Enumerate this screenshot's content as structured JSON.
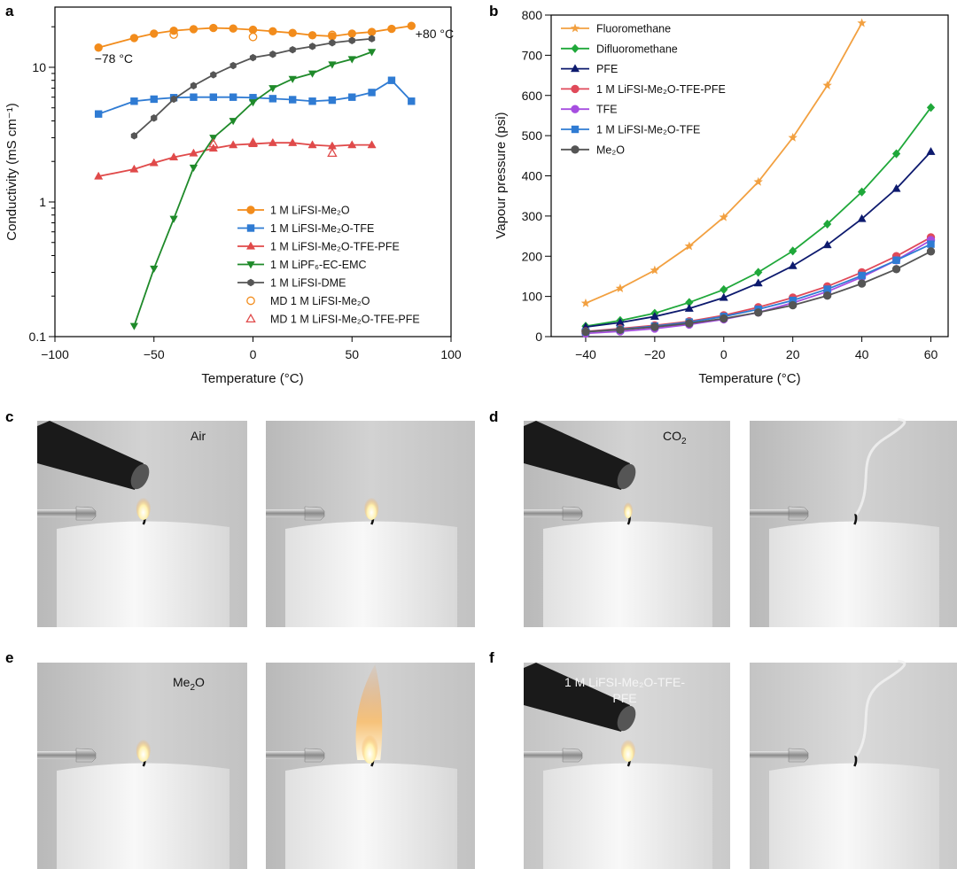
{
  "panels": {
    "a": "a",
    "b": "b",
    "c": "c",
    "d": "d",
    "e": "e",
    "f": "f"
  },
  "chart_data": [
    {
      "id": "a",
      "type": "line",
      "xlabel": "Temperature (°C)",
      "ylabel": "Conductivity (mS cm⁻¹)",
      "xlim": [
        -100,
        100
      ],
      "ylim": [
        0.1,
        28
      ],
      "yscale": "log",
      "xticks": [
        -100,
        -50,
        0,
        50,
        100
      ],
      "yticks": [
        0.1,
        1,
        10
      ],
      "yticklabels": [
        "0.1",
        "1",
        "10"
      ],
      "grid": false,
      "legend_position": "lower-right",
      "annotations": [
        {
          "text": "−78 °C",
          "x": -80,
          "y": 10.8
        },
        {
          "text": "+80 °C",
          "x": 82,
          "y": 16.5
        }
      ],
      "series": [
        {
          "name": "1 M LiFSI-Me₂O",
          "color": "#f28c1c",
          "marker": "circle",
          "x": [
            -78,
            -60,
            -50,
            -40,
            -30,
            -20,
            -10,
            0,
            10,
            20,
            30,
            40,
            50,
            60,
            70,
            80
          ],
          "y": [
            14,
            16.5,
            17.8,
            18.7,
            19.2,
            19.6,
            19.4,
            19,
            18.5,
            18,
            17.3,
            17,
            17.8,
            18.3,
            19.3,
            20.3
          ]
        },
        {
          "name": "1 M LiFSI-Me₂O-TFE",
          "color": "#2f7bd3",
          "marker": "square",
          "x": [
            -78,
            -60,
            -50,
            -40,
            -30,
            -20,
            -10,
            0,
            10,
            20,
            30,
            40,
            50,
            60,
            70,
            80
          ],
          "y": [
            4.5,
            5.6,
            5.8,
            5.95,
            6.0,
            6.0,
            6.0,
            5.95,
            5.85,
            5.75,
            5.6,
            5.7,
            6.0,
            6.5,
            8,
            5.6
          ]
        },
        {
          "name": "1 M LiFSI-Me₂O-TFE-PFE",
          "color": "#e04a4a",
          "marker": "triangle-up",
          "x": [
            -78,
            -60,
            -50,
            -40,
            -30,
            -20,
            -10,
            0,
            10,
            20,
            30,
            40,
            50,
            60
          ],
          "y": [
            1.55,
            1.75,
            1.95,
            2.15,
            2.3,
            2.5,
            2.65,
            2.7,
            2.75,
            2.75,
            2.65,
            2.6,
            2.65,
            2.65
          ]
        },
        {
          "name": "1 M LiPF₆-EC-EMC",
          "color": "#1f8a2a",
          "marker": "triangle-down",
          "x": [
            -60,
            -50,
            -40,
            -30,
            -20,
            -10,
            0,
            10,
            20,
            30,
            40,
            50,
            60
          ],
          "y": [
            0.12,
            0.32,
            0.75,
            1.8,
            3.0,
            4.0,
            5.5,
            7.0,
            8.2,
            9.0,
            10.5,
            11.5,
            13
          ]
        },
        {
          "name": "1 M LiFSI-DME",
          "color": "#555555",
          "marker": "hexagon",
          "x": [
            -60,
            -50,
            -40,
            -30,
            -20,
            -10,
            0,
            10,
            20,
            30,
            40,
            50,
            60
          ],
          "y": [
            3.1,
            4.2,
            5.8,
            7.3,
            8.8,
            10.3,
            11.8,
            12.5,
            13.5,
            14.3,
            15.2,
            15.8,
            16.3
          ]
        },
        {
          "name": "MD 1 M LiFSI-Me₂O",
          "color": "#f28c1c",
          "marker": "open-circle",
          "line": false,
          "x": [
            -40,
            0,
            40
          ],
          "y": [
            17.5,
            16.8,
            17.4
          ]
        },
        {
          "name": "MD 1 M LiFSI-Me₂O-TFE-PFE",
          "color": "#e04a4a",
          "marker": "open-triangle",
          "line": false,
          "x": [
            -20,
            0,
            40
          ],
          "y": [
            2.7,
            2.75,
            2.3
          ]
        }
      ]
    },
    {
      "id": "b",
      "type": "line",
      "xlabel": "Temperature (°C)",
      "ylabel": "Vapour pressure (psi)",
      "xlim": [
        -50,
        65
      ],
      "ylim": [
        0,
        800
      ],
      "xticks": [
        -40,
        -20,
        0,
        20,
        40,
        60
      ],
      "yticks": [
        0,
        100,
        200,
        300,
        400,
        500,
        600,
        700,
        800
      ],
      "grid": false,
      "legend_position": "top-left",
      "series": [
        {
          "name": "Fluoromethane",
          "color": "#f2a040",
          "marker": "star",
          "x": [
            -40,
            -30,
            -20,
            -10,
            0,
            10,
            20,
            30,
            40
          ],
          "y": [
            83,
            120,
            165,
            225,
            297,
            385,
            495,
            625,
            780
          ]
        },
        {
          "name": "Difluoromethane",
          "color": "#1fa83a",
          "marker": "diamond",
          "x": [
            -40,
            -30,
            -20,
            -10,
            0,
            10,
            20,
            30,
            40,
            50,
            60
          ],
          "y": [
            26,
            40,
            58,
            85,
            117,
            160,
            213,
            280,
            360,
            455,
            570
          ]
        },
        {
          "name": "PFE",
          "color": "#0d1a6e",
          "marker": "triangle-up",
          "x": [
            -40,
            -30,
            -20,
            -10,
            0,
            10,
            20,
            30,
            40,
            50,
            60
          ],
          "y": [
            24,
            35,
            50,
            70,
            97,
            133,
            176,
            228,
            293,
            368,
            460
          ]
        },
        {
          "name": "1 M LiFSI-Me₂O-TFE-PFE",
          "color": "#e04a5a",
          "marker": "circle",
          "x": [
            -40,
            -30,
            -20,
            -10,
            0,
            10,
            20,
            30,
            40,
            50,
            60
          ],
          "y": [
            13,
            20,
            28,
            38,
            53,
            73,
            97,
            125,
            160,
            200,
            247
          ]
        },
        {
          "name": "TFE",
          "color": "#a64ee0",
          "marker": "circle",
          "x": [
            -40,
            -30,
            -20,
            -10,
            0,
            10,
            20,
            30,
            40,
            50,
            60
          ],
          "y": [
            8,
            13,
            20,
            30,
            43,
            60,
            84,
            112,
            148,
            190,
            240
          ]
        },
        {
          "name": "1 M LiFSI-Me₂O-TFE",
          "color": "#2f7bd3",
          "marker": "square",
          "x": [
            -40,
            -30,
            -20,
            -10,
            0,
            10,
            20,
            30,
            40,
            50,
            60
          ],
          "y": [
            12,
            18,
            26,
            36,
            50,
            68,
            90,
            118,
            152,
            190,
            230
          ]
        },
        {
          "name": "Me₂O",
          "color": "#555555",
          "marker": "circle",
          "x": [
            -40,
            -30,
            -20,
            -10,
            0,
            10,
            20,
            30,
            40,
            50,
            60
          ],
          "y": [
            12,
            17,
            24,
            33,
            45,
            60,
            78,
            102,
            132,
            168,
            212
          ]
        }
      ]
    }
  ],
  "photos": {
    "c_label": "Air",
    "d_label": "CO",
    "d_label_sub": "2",
    "e_label": "Me",
    "e_label_sub": "2",
    "e_label_tail": "O",
    "f_label_line1": "1 M LiFSI-Me₂O-TFE-",
    "f_label_line2": "PFE"
  }
}
